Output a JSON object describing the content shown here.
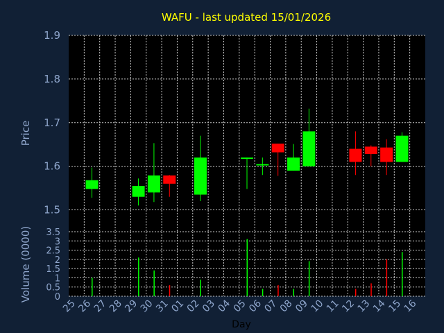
{
  "chart_data": [
    {
      "type": "candlestick",
      "title": "WAFU - last updated 15/01/2026",
      "ylabel": "Price",
      "ylim": [
        1.45,
        1.9
      ],
      "yticks": [
        1.5,
        1.6,
        1.7,
        1.8,
        1.9
      ],
      "yticks_labels": [
        "1.5",
        "1.6",
        "1.7",
        "1.8",
        "1.9"
      ],
      "grid": true,
      "x_labels": [
        "25",
        "26",
        "27",
        "28",
        "29",
        "30",
        "31",
        "01",
        "02",
        "03",
        "04",
        "05",
        "06",
        "07",
        "08",
        "09",
        "10",
        "11",
        "12",
        "13",
        "14",
        "15",
        "16"
      ],
      "candles": [
        {
          "day": "26",
          "open": 1.548,
          "high": 1.597,
          "low": 1.528,
          "close": 1.568
        },
        {
          "day": "29",
          "open": 1.53,
          "high": 1.572,
          "low": 1.51,
          "close": 1.555
        },
        {
          "day": "30",
          "open": 1.54,
          "high": 1.653,
          "low": 1.518,
          "close": 1.579
        },
        {
          "day": "31",
          "open": 1.579,
          "high": 1.58,
          "low": 1.53,
          "close": 1.56
        },
        {
          "day": "02",
          "open": 1.535,
          "high": 1.67,
          "low": 1.52,
          "close": 1.62
        },
        {
          "day": "05",
          "open": 1.618,
          "high": 1.62,
          "low": 1.548,
          "close": 1.62
        },
        {
          "day": "06",
          "open": 1.602,
          "high": 1.62,
          "low": 1.58,
          "close": 1.605
        },
        {
          "day": "07",
          "open": 1.652,
          "high": 1.652,
          "low": 1.578,
          "close": 1.632
        },
        {
          "day": "08",
          "open": 1.59,
          "high": 1.651,
          "low": 1.59,
          "close": 1.62
        },
        {
          "day": "09",
          "open": 1.6,
          "high": 1.732,
          "low": 1.6,
          "close": 1.68
        },
        {
          "day": "12",
          "open": 1.64,
          "high": 1.68,
          "low": 1.58,
          "close": 1.61
        },
        {
          "day": "13",
          "open": 1.645,
          "high": 1.648,
          "low": 1.6,
          "close": 1.628
        },
        {
          "day": "14",
          "open": 1.643,
          "high": 1.662,
          "low": 1.58,
          "close": 1.61
        },
        {
          "day": "15",
          "open": 1.61,
          "high": 1.678,
          "low": 1.61,
          "close": 1.67
        }
      ],
      "up_color": "#00ff00",
      "down_color": "#ff0000"
    },
    {
      "type": "bar",
      "ylabel": "Volume (0000)",
      "xlabel": "Day",
      "ylim": [
        0,
        3.5
      ],
      "yticks": [
        0,
        0.5,
        1,
        1.5,
        2,
        2.5,
        3,
        3.5
      ],
      "yticks_labels": [
        "0",
        "0.5",
        "1",
        "1.5",
        "2",
        "2.5",
        "3",
        "3.5"
      ],
      "grid": true,
      "categories": [
        "26",
        "29",
        "30",
        "31",
        "02",
        "05",
        "06",
        "07",
        "08",
        "09",
        "12",
        "13",
        "14",
        "15"
      ],
      "values": [
        1.0,
        2.1,
        1.4,
        0.6,
        0.9,
        3.1,
        0.4,
        0.6,
        0.4,
        1.9,
        0.4,
        0.7,
        2.0,
        2.4
      ],
      "colors": [
        "#00ff00",
        "#00ff00",
        "#00ff00",
        "#ff0000",
        "#00ff00",
        "#00ff00",
        "#00ff00",
        "#ff0000",
        "#00ff00",
        "#00ff00",
        "#ff0000",
        "#ff0000",
        "#ff0000",
        "#00ff00"
      ]
    }
  ]
}
